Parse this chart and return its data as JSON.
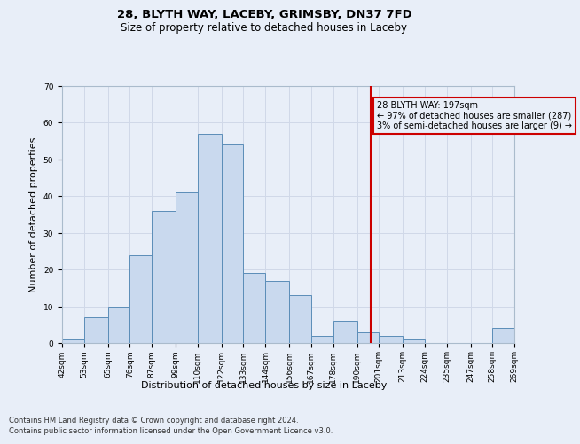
{
  "title_line1": "28, BLYTH WAY, LACEBY, GRIMSBY, DN37 7FD",
  "title_line2": "Size of property relative to detached houses in Laceby",
  "xlabel": "Distribution of detached houses by size in Laceby",
  "ylabel": "Number of detached properties",
  "footer_line1": "Contains HM Land Registry data © Crown copyright and database right 2024.",
  "footer_line2": "Contains public sector information licensed under the Open Government Licence v3.0.",
  "bar_color": "#c9d9ee",
  "bar_edge_color": "#5b8db8",
  "grid_color": "#d0d8e8",
  "annotation_text": "28 BLYTH WAY: 197sqm\n← 97% of detached houses are smaller (287)\n3% of semi-detached houses are larger (9) →",
  "vline_x": 197,
  "vline_color": "#cc0000",
  "annotation_box_color": "#cc0000",
  "bin_edges": [
    42,
    53,
    65,
    76,
    87,
    99,
    110,
    122,
    133,
    144,
    156,
    167,
    178,
    190,
    201,
    213,
    224,
    235,
    247,
    258,
    269
  ],
  "bar_heights": [
    1,
    7,
    10,
    24,
    36,
    41,
    57,
    54,
    19,
    17,
    13,
    2,
    6,
    3,
    2,
    1,
    0,
    0,
    0,
    4
  ],
  "ylim": [
    0,
    70
  ],
  "yticks": [
    0,
    10,
    20,
    30,
    40,
    50,
    60,
    70
  ],
  "background_color": "#e8eef8",
  "title_fontsize": 9.5,
  "subtitle_fontsize": 8.5,
  "axis_label_fontsize": 8,
  "tick_fontsize": 6.5,
  "footer_fontsize": 6,
  "annotation_fontsize": 7
}
